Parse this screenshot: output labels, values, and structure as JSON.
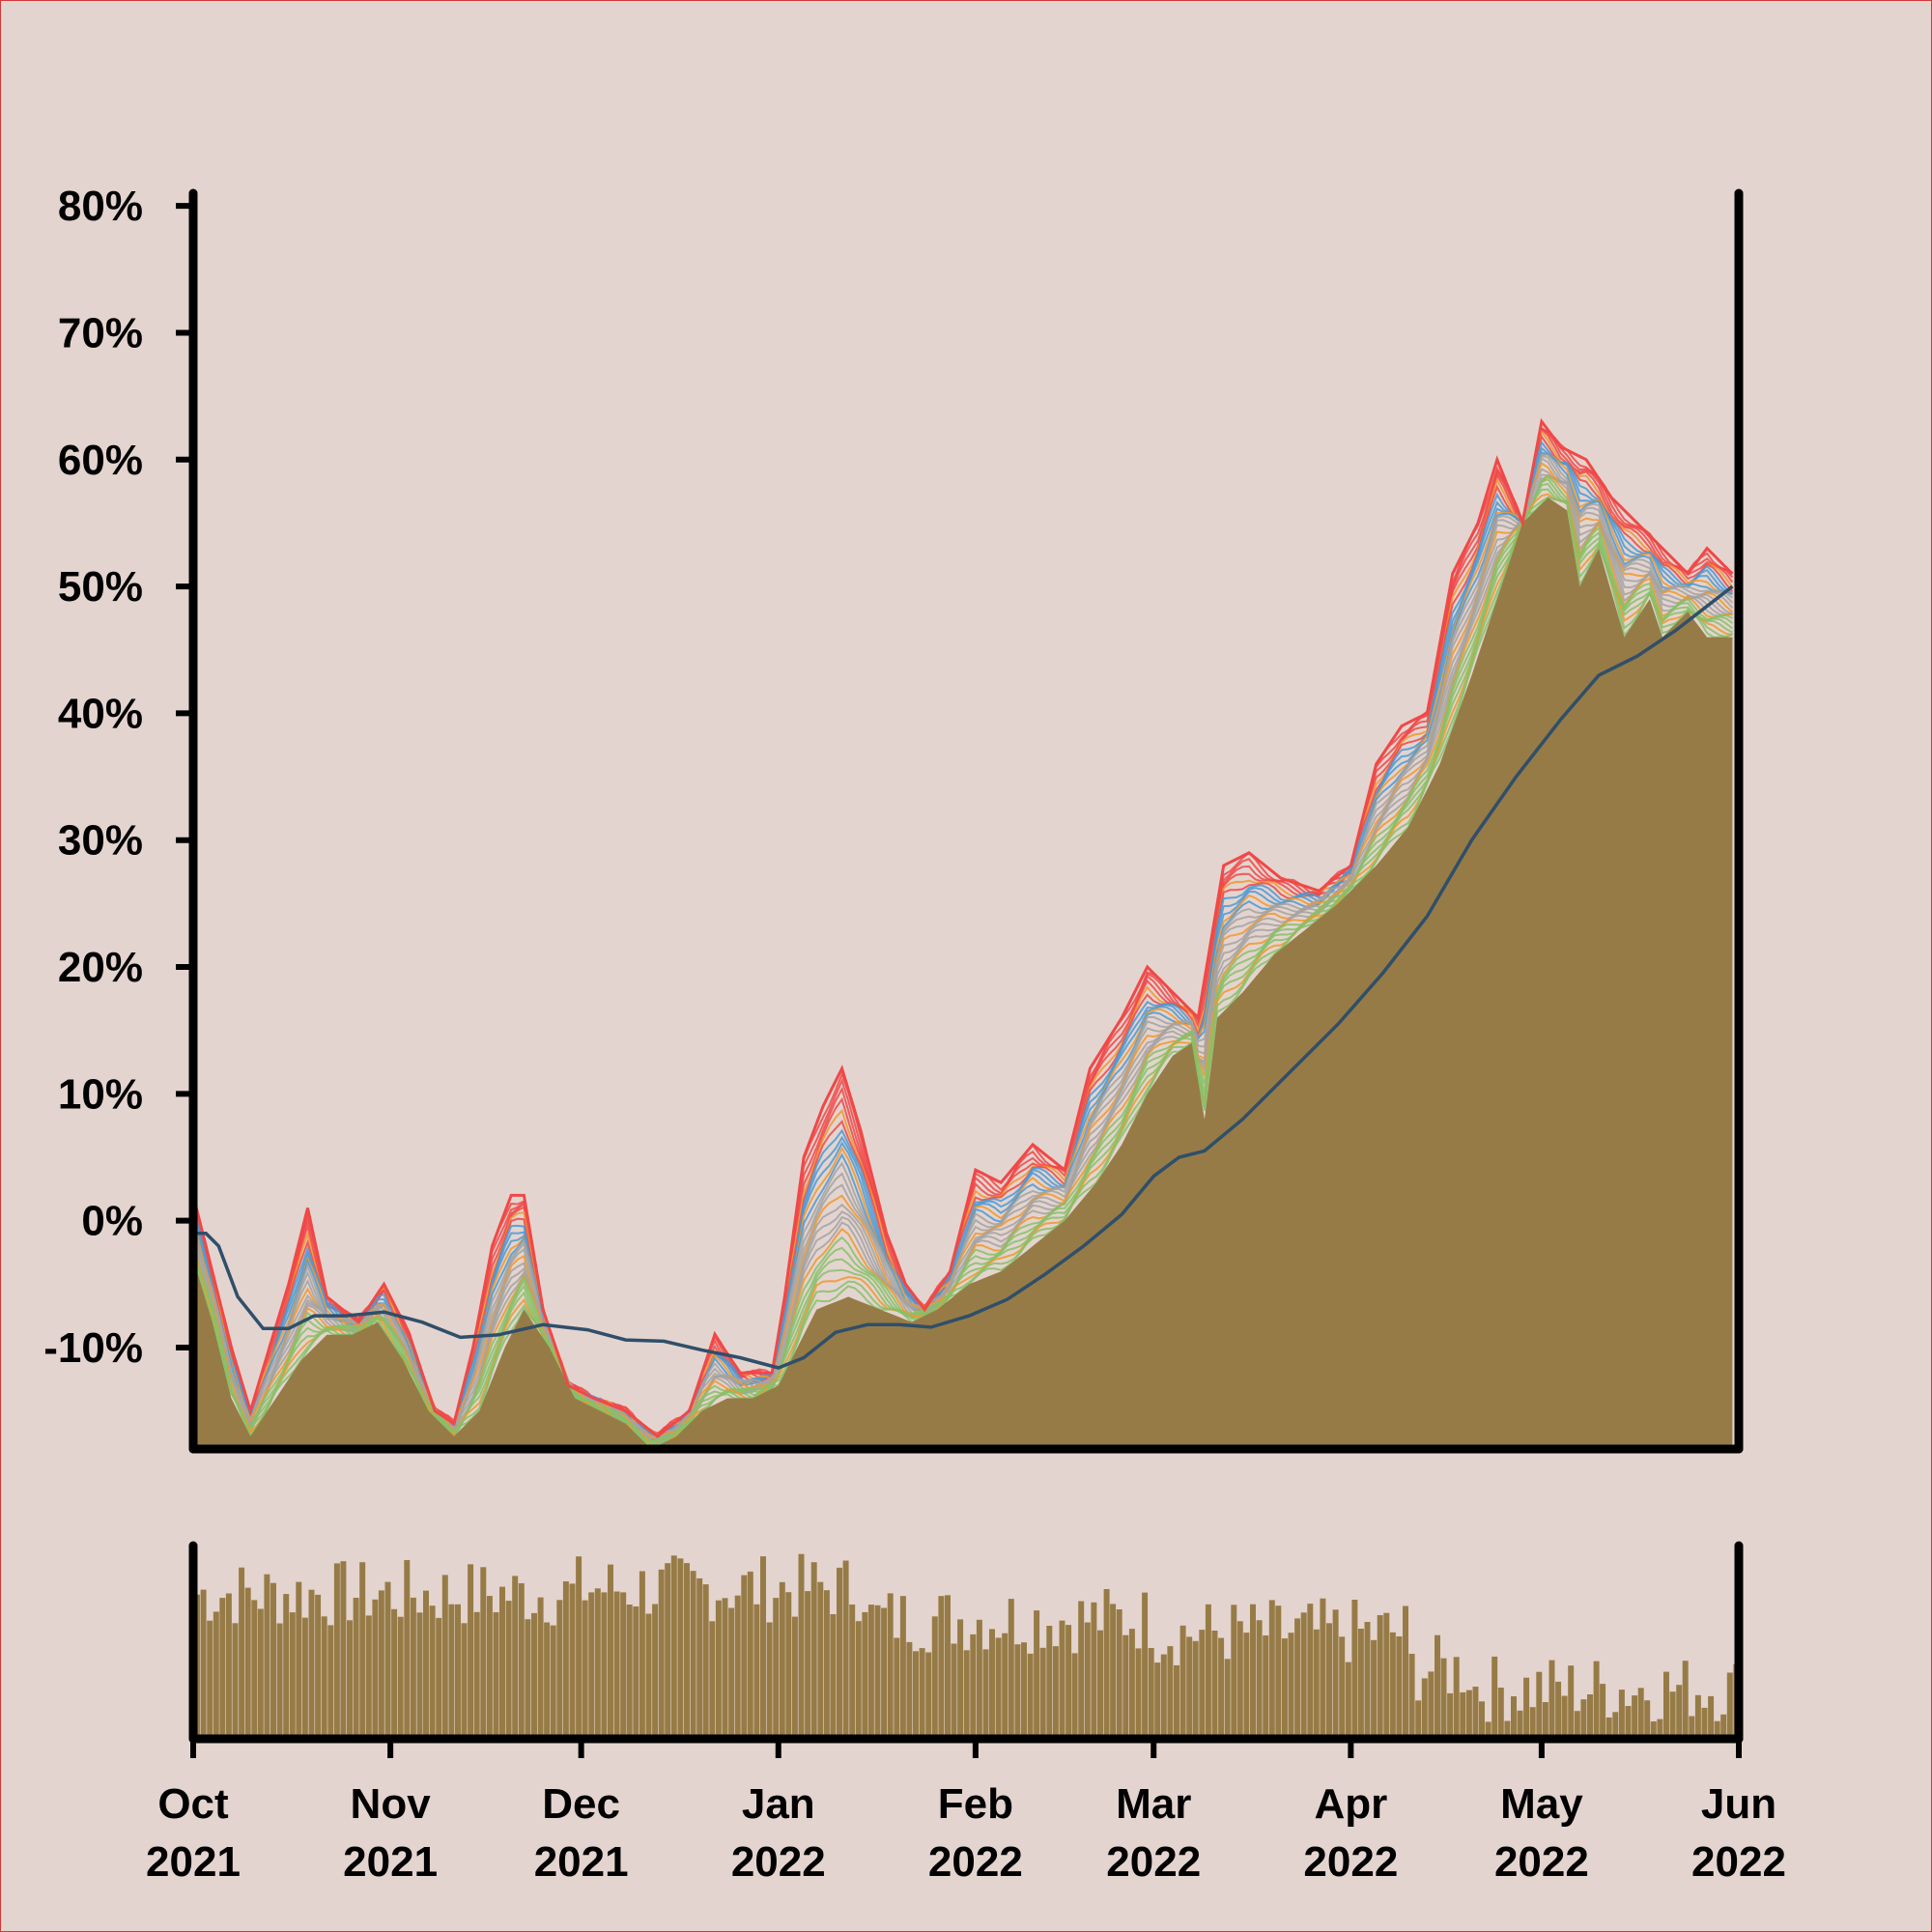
{
  "chart_data": [
    {
      "type": "area",
      "series": [
        {
          "values": [
            {
              "x": "2021-10-01",
              "y": -3
            },
            {
              "x": "2021-10-04",
              "y": -8
            },
            {
              "x": "2021-10-07",
              "y": -14
            },
            {
              "x": "2021-10-10",
              "y": -17
            },
            {
              "x": "2021-10-14",
              "y": -14
            },
            {
              "x": "2021-10-18",
              "y": -11
            },
            {
              "x": "2021-10-22",
              "y": -9
            },
            {
              "x": "2021-10-26",
              "y": -9
            },
            {
              "x": "2021-10-30",
              "y": -8
            },
            {
              "x": "2021-11-03",
              "y": -11
            },
            {
              "x": "2021-11-07",
              "y": -15
            },
            {
              "x": "2021-11-11",
              "y": -17
            },
            {
              "x": "2021-11-15",
              "y": -15
            },
            {
              "x": "2021-11-19",
              "y": -10
            },
            {
              "x": "2021-11-22",
              "y": -7
            },
            {
              "x": "2021-11-26",
              "y": -10
            },
            {
              "x": "2021-11-30",
              "y": -14
            },
            {
              "x": "2021-12-04",
              "y": -15
            },
            {
              "x": "2021-12-08",
              "y": -16
            },
            {
              "x": "2021-12-12",
              "y": -18
            },
            {
              "x": "2021-12-16",
              "y": -17
            },
            {
              "x": "2021-12-20",
              "y": -15
            },
            {
              "x": "2021-12-24",
              "y": -14
            },
            {
              "x": "2021-12-28",
              "y": -14
            },
            {
              "x": "2022-01-01",
              "y": -13
            },
            {
              "x": "2022-01-04",
              "y": -10
            },
            {
              "x": "2022-01-07",
              "y": -7
            },
            {
              "x": "2022-01-12",
              "y": -6
            },
            {
              "x": "2022-01-17",
              "y": -7
            },
            {
              "x": "2022-01-22",
              "y": -8
            },
            {
              "x": "2022-01-26",
              "y": -7
            },
            {
              "x": "2022-01-31",
              "y": -5
            },
            {
              "x": "2022-02-05",
              "y": -4
            },
            {
              "x": "2022-02-10",
              "y": -2
            },
            {
              "x": "2022-02-15",
              "y": 0
            },
            {
              "x": "2022-02-20",
              "y": 3
            },
            {
              "x": "2022-02-24",
              "y": 6
            },
            {
              "x": "2022-02-28",
              "y": 10
            },
            {
              "x": "2022-03-04",
              "y": 13
            },
            {
              "x": "2022-03-07",
              "y": 14
            },
            {
              "x": "2022-03-09",
              "y": 8
            },
            {
              "x": "2022-03-11",
              "y": 16
            },
            {
              "x": "2022-03-15",
              "y": 18
            },
            {
              "x": "2022-03-20",
              "y": 21
            },
            {
              "x": "2022-03-25",
              "y": 23
            },
            {
              "x": "2022-03-30",
              "y": 25
            },
            {
              "x": "2022-04-05",
              "y": 28
            },
            {
              "x": "2022-04-10",
              "y": 31
            },
            {
              "x": "2022-04-15",
              "y": 36
            },
            {
              "x": "2022-04-20",
              "y": 43
            },
            {
              "x": "2022-04-24",
              "y": 49
            },
            {
              "x": "2022-04-28",
              "y": 55
            },
            {
              "x": "2022-05-02",
              "y": 57
            },
            {
              "x": "2022-05-05",
              "y": 56
            },
            {
              "x": "2022-05-07",
              "y": 50
            },
            {
              "x": "2022-05-10",
              "y": 53
            },
            {
              "x": "2022-05-14",
              "y": 46
            },
            {
              "x": "2022-05-18",
              "y": 49
            },
            {
              "x": "2022-05-20",
              "y": 46
            },
            {
              "x": "2022-05-24",
              "y": 48
            },
            {
              "x": "2022-05-27",
              "y": 46
            },
            {
              "x": "2022-05-31",
              "y": 46
            }
          ]
        },
        {
          "values": [
            {
              "x": "2021-10-01",
              "y": 2
            },
            {
              "x": "2021-10-04",
              "y": -4
            },
            {
              "x": "2021-10-07",
              "y": -10
            },
            {
              "x": "2021-10-10",
              "y": -15
            },
            {
              "x": "2021-10-13",
              "y": -10
            },
            {
              "x": "2021-10-16",
              "y": -5
            },
            {
              "x": "2021-10-19",
              "y": 1
            },
            {
              "x": "2021-10-22",
              "y": -6
            },
            {
              "x": "2021-10-27",
              "y": -8
            },
            {
              "x": "2021-10-31",
              "y": -5
            },
            {
              "x": "2021-11-04",
              "y": -9
            },
            {
              "x": "2021-11-08",
              "y": -15
            },
            {
              "x": "2021-11-11",
              "y": -16
            },
            {
              "x": "2021-11-14",
              "y": -10
            },
            {
              "x": "2021-11-17",
              "y": -2
            },
            {
              "x": "2021-11-20",
              "y": 2
            },
            {
              "x": "2021-11-22",
              "y": 2
            },
            {
              "x": "2021-11-25",
              "y": -7
            },
            {
              "x": "2021-11-29",
              "y": -13
            },
            {
              "x": "2021-12-03",
              "y": -14
            },
            {
              "x": "2021-12-08",
              "y": -15
            },
            {
              "x": "2021-12-13",
              "y": -17
            },
            {
              "x": "2021-12-18",
              "y": -15
            },
            {
              "x": "2021-12-22",
              "y": -9
            },
            {
              "x": "2021-12-26",
              "y": -12
            },
            {
              "x": "2021-12-31",
              "y": -12
            },
            {
              "x": "2022-01-02",
              "y": -6
            },
            {
              "x": "2022-01-05",
              "y": 5
            },
            {
              "x": "2022-01-08",
              "y": 9
            },
            {
              "x": "2022-01-11",
              "y": 12
            },
            {
              "x": "2022-01-14",
              "y": 7
            },
            {
              "x": "2022-01-18",
              "y": -1
            },
            {
              "x": "2022-01-21",
              "y": -5
            },
            {
              "x": "2022-01-24",
              "y": -7
            },
            {
              "x": "2022-01-28",
              "y": -4
            },
            {
              "x": "2022-02-01",
              "y": 4
            },
            {
              "x": "2022-02-05",
              "y": 3
            },
            {
              "x": "2022-02-10",
              "y": 6
            },
            {
              "x": "2022-02-15",
              "y": 4
            },
            {
              "x": "2022-02-19",
              "y": 12
            },
            {
              "x": "2022-02-24",
              "y": 16
            },
            {
              "x": "2022-02-28",
              "y": 20
            },
            {
              "x": "2022-03-04",
              "y": 18
            },
            {
              "x": "2022-03-08",
              "y": 16
            },
            {
              "x": "2022-03-12",
              "y": 28
            },
            {
              "x": "2022-03-16",
              "y": 29
            },
            {
              "x": "2022-03-21",
              "y": 27
            },
            {
              "x": "2022-03-27",
              "y": 26
            },
            {
              "x": "2022-04-01",
              "y": 28
            },
            {
              "x": "2022-04-05",
              "y": 36
            },
            {
              "x": "2022-04-09",
              "y": 39
            },
            {
              "x": "2022-04-13",
              "y": 40
            },
            {
              "x": "2022-04-17",
              "y": 51
            },
            {
              "x": "2022-04-21",
              "y": 55
            },
            {
              "x": "2022-04-24",
              "y": 60
            },
            {
              "x": "2022-04-28",
              "y": 55
            },
            {
              "x": "2022-05-01",
              "y": 63
            },
            {
              "x": "2022-05-04",
              "y": 61
            },
            {
              "x": "2022-05-08",
              "y": 60
            },
            {
              "x": "2022-05-12",
              "y": 57
            },
            {
              "x": "2022-05-16",
              "y": 55
            },
            {
              "x": "2022-05-20",
              "y": 53
            },
            {
              "x": "2022-05-24",
              "y": 51
            },
            {
              "x": "2022-05-27",
              "y": 53
            },
            {
              "x": "2022-05-31",
              "y": 51
            }
          ]
        },
        {
          "type": "line",
          "values": [
            {
              "x": "2021-10-01",
              "y": -1
            },
            {
              "x": "2021-10-03",
              "y": -1
            },
            {
              "x": "2021-10-05",
              "y": -2
            },
            {
              "x": "2021-10-08",
              "y": -6
            },
            {
              "x": "2021-10-12",
              "y": -8.5
            },
            {
              "x": "2021-10-16",
              "y": -8.5
            },
            {
              "x": "2021-10-20",
              "y": -7.5
            },
            {
              "x": "2021-10-25",
              "y": -7.5
            },
            {
              "x": "2021-10-31",
              "y": -7.2
            },
            {
              "x": "2021-11-06",
              "y": -8
            },
            {
              "x": "2021-11-12",
              "y": -9.2
            },
            {
              "x": "2021-11-18",
              "y": -9
            },
            {
              "x": "2021-11-25",
              "y": -8.2
            },
            {
              "x": "2021-12-02",
              "y": -8.6
            },
            {
              "x": "2021-12-08",
              "y": -9.4
            },
            {
              "x": "2021-12-14",
              "y": -9.5
            },
            {
              "x": "2021-12-20",
              "y": -10.2
            },
            {
              "x": "2021-12-26",
              "y": -10.8
            },
            {
              "x": "2022-01-01",
              "y": -11.6
            },
            {
              "x": "2022-01-05",
              "y": -10.8
            },
            {
              "x": "2022-01-10",
              "y": -8.8
            },
            {
              "x": "2022-01-15",
              "y": -8.2
            },
            {
              "x": "2022-01-20",
              "y": -8.2
            },
            {
              "x": "2022-01-25",
              "y": -8.4
            },
            {
              "x": "2022-01-31",
              "y": -7.5
            },
            {
              "x": "2022-02-06",
              "y": -6.2
            },
            {
              "x": "2022-02-12",
              "y": -4.2
            },
            {
              "x": "2022-02-18",
              "y": -2
            },
            {
              "x": "2022-02-24",
              "y": 0.5
            },
            {
              "x": "2022-03-01",
              "y": 3.5
            },
            {
              "x": "2022-03-05",
              "y": 5
            },
            {
              "x": "2022-03-09",
              "y": 5.5
            },
            {
              "x": "2022-03-15",
              "y": 8
            },
            {
              "x": "2022-03-22",
              "y": 11.5
            },
            {
              "x": "2022-03-30",
              "y": 15.5
            },
            {
              "x": "2022-04-06",
              "y": 19.5
            },
            {
              "x": "2022-04-13",
              "y": 24
            },
            {
              "x": "2022-04-20",
              "y": 30
            },
            {
              "x": "2022-04-27",
              "y": 35
            },
            {
              "x": "2022-05-04",
              "y": 39.5
            },
            {
              "x": "2022-05-10",
              "y": 43
            },
            {
              "x": "2022-05-16",
              "y": 44.5
            },
            {
              "x": "2022-05-22",
              "y": 46.5
            },
            {
              "x": "2022-05-31",
              "y": 50
            }
          ]
        }
      ],
      "yticks": [
        "-10%",
        "0%",
        "10%",
        "20%",
        "30%",
        "40%",
        "50%",
        "60%",
        "70%",
        "80%"
      ],
      "ylim": [
        -18,
        81
      ],
      "xlim": [
        "2021-10-01",
        "2022-06-01"
      ],
      "grid": false,
      "colors": {
        "area": "#977b46",
        "mean_line": "#2f4f6a",
        "envelope": [
          "#f04848",
          "#4a9ad6",
          "#86c168",
          "#a3a3a3",
          "#f0982e"
        ]
      }
    },
    {
      "type": "bar",
      "xlim": [
        "2021-10-01",
        "2022-06-01"
      ],
      "ylim": [
        0,
        100
      ],
      "bar_color": "#977b46",
      "x_tick_labels": [
        {
          "month": "Oct",
          "year": "2021"
        },
        {
          "month": "Nov",
          "year": "2021"
        },
        {
          "month": "Dec",
          "year": "2021"
        },
        {
          "month": "Jan",
          "year": "2022"
        },
        {
          "month": "Feb",
          "year": "2022"
        },
        {
          "month": "Mar",
          "year": "2022"
        },
        {
          "month": "Apr",
          "year": "2022"
        },
        {
          "month": "May",
          "year": "2022"
        },
        {
          "month": "Jun",
          "year": "2022"
        }
      ],
      "segments": [
        {
          "from": "2021-10-01",
          "to": "2021-11-30",
          "level": 75
        },
        {
          "from": "2021-11-30",
          "to": "2022-01-15",
          "level": 78
        },
        {
          "from": "2022-01-15",
          "to": "2022-03-01",
          "level": 62
        },
        {
          "from": "2022-03-01",
          "to": "2022-04-10",
          "level": 55
        },
        {
          "from": "2022-04-10",
          "to": "2022-04-20",
          "level": 36
        },
        {
          "from": "2022-04-20",
          "to": "2022-06-01",
          "level": 26
        }
      ]
    }
  ]
}
